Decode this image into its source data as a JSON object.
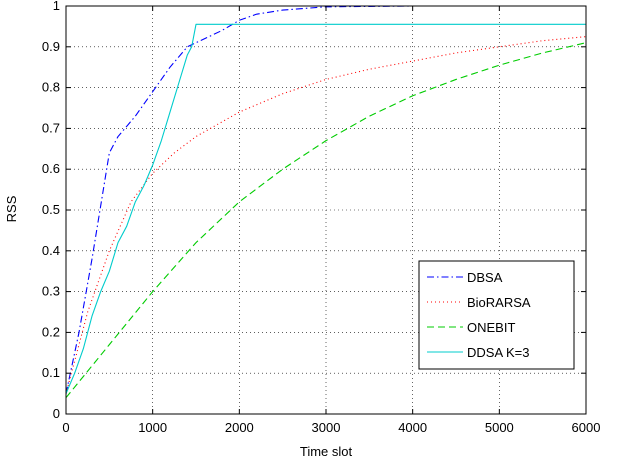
{
  "chart_data": {
    "type": "line",
    "title": "",
    "xlabel": "Time slot",
    "ylabel": "RSS",
    "xlim": [
      0,
      6000
    ],
    "ylim": [
      0,
      1
    ],
    "x_ticks": [
      0,
      1000,
      2000,
      3000,
      4000,
      5000,
      6000
    ],
    "y_ticks": [
      0,
      0.1,
      0.2,
      0.3,
      0.4,
      0.5,
      0.6,
      0.7,
      0.8,
      0.9,
      1
    ],
    "grid": true,
    "legend_position": "lower-right",
    "series": [
      {
        "name": "DBSA",
        "color": "#0000ff",
        "dash": "dash-dot",
        "x": [
          0,
          150,
          300,
          500,
          600,
          800,
          1000,
          1200,
          1400,
          1500,
          1800,
          2000,
          2200,
          2500,
          3000,
          4000,
          5000,
          6000
        ],
        "y": [
          0.05,
          0.2,
          0.38,
          0.64,
          0.68,
          0.73,
          0.79,
          0.85,
          0.9,
          0.91,
          0.94,
          0.965,
          0.98,
          0.99,
          0.998,
          1.0,
          1.0,
          1.0
        ]
      },
      {
        "name": "BioRARSA",
        "color": "#ff0000",
        "dash": "dotted",
        "x": [
          0,
          250,
          500,
          750,
          1000,
          1250,
          1500,
          1750,
          2000,
          2500,
          3000,
          3500,
          4000,
          4500,
          5000,
          5500,
          6000
        ],
        "y": [
          0.05,
          0.25,
          0.4,
          0.52,
          0.59,
          0.64,
          0.68,
          0.71,
          0.74,
          0.785,
          0.82,
          0.845,
          0.865,
          0.885,
          0.9,
          0.915,
          0.925
        ]
      },
      {
        "name": "ONEBIT",
        "color": "#00cc00",
        "dash": "dashed",
        "x": [
          0,
          500,
          1000,
          1500,
          2000,
          2500,
          3000,
          3500,
          4000,
          4500,
          5000,
          5500,
          6000
        ],
        "y": [
          0.04,
          0.17,
          0.3,
          0.42,
          0.52,
          0.6,
          0.67,
          0.73,
          0.78,
          0.82,
          0.855,
          0.885,
          0.91
        ]
      },
      {
        "name": "DDSA K=3",
        "color": "#00cccc",
        "dash": "solid",
        "x": [
          0,
          100,
          200,
          300,
          400,
          500,
          600,
          700,
          800,
          900,
          1000,
          1100,
          1200,
          1300,
          1400,
          1450,
          1500,
          2000,
          3000,
          4000,
          5000,
          6000
        ],
        "y": [
          0.05,
          0.1,
          0.16,
          0.24,
          0.3,
          0.35,
          0.42,
          0.46,
          0.52,
          0.56,
          0.61,
          0.67,
          0.74,
          0.81,
          0.88,
          0.9,
          0.955,
          0.955,
          0.955,
          0.955,
          0.955,
          0.955
        ]
      }
    ]
  }
}
